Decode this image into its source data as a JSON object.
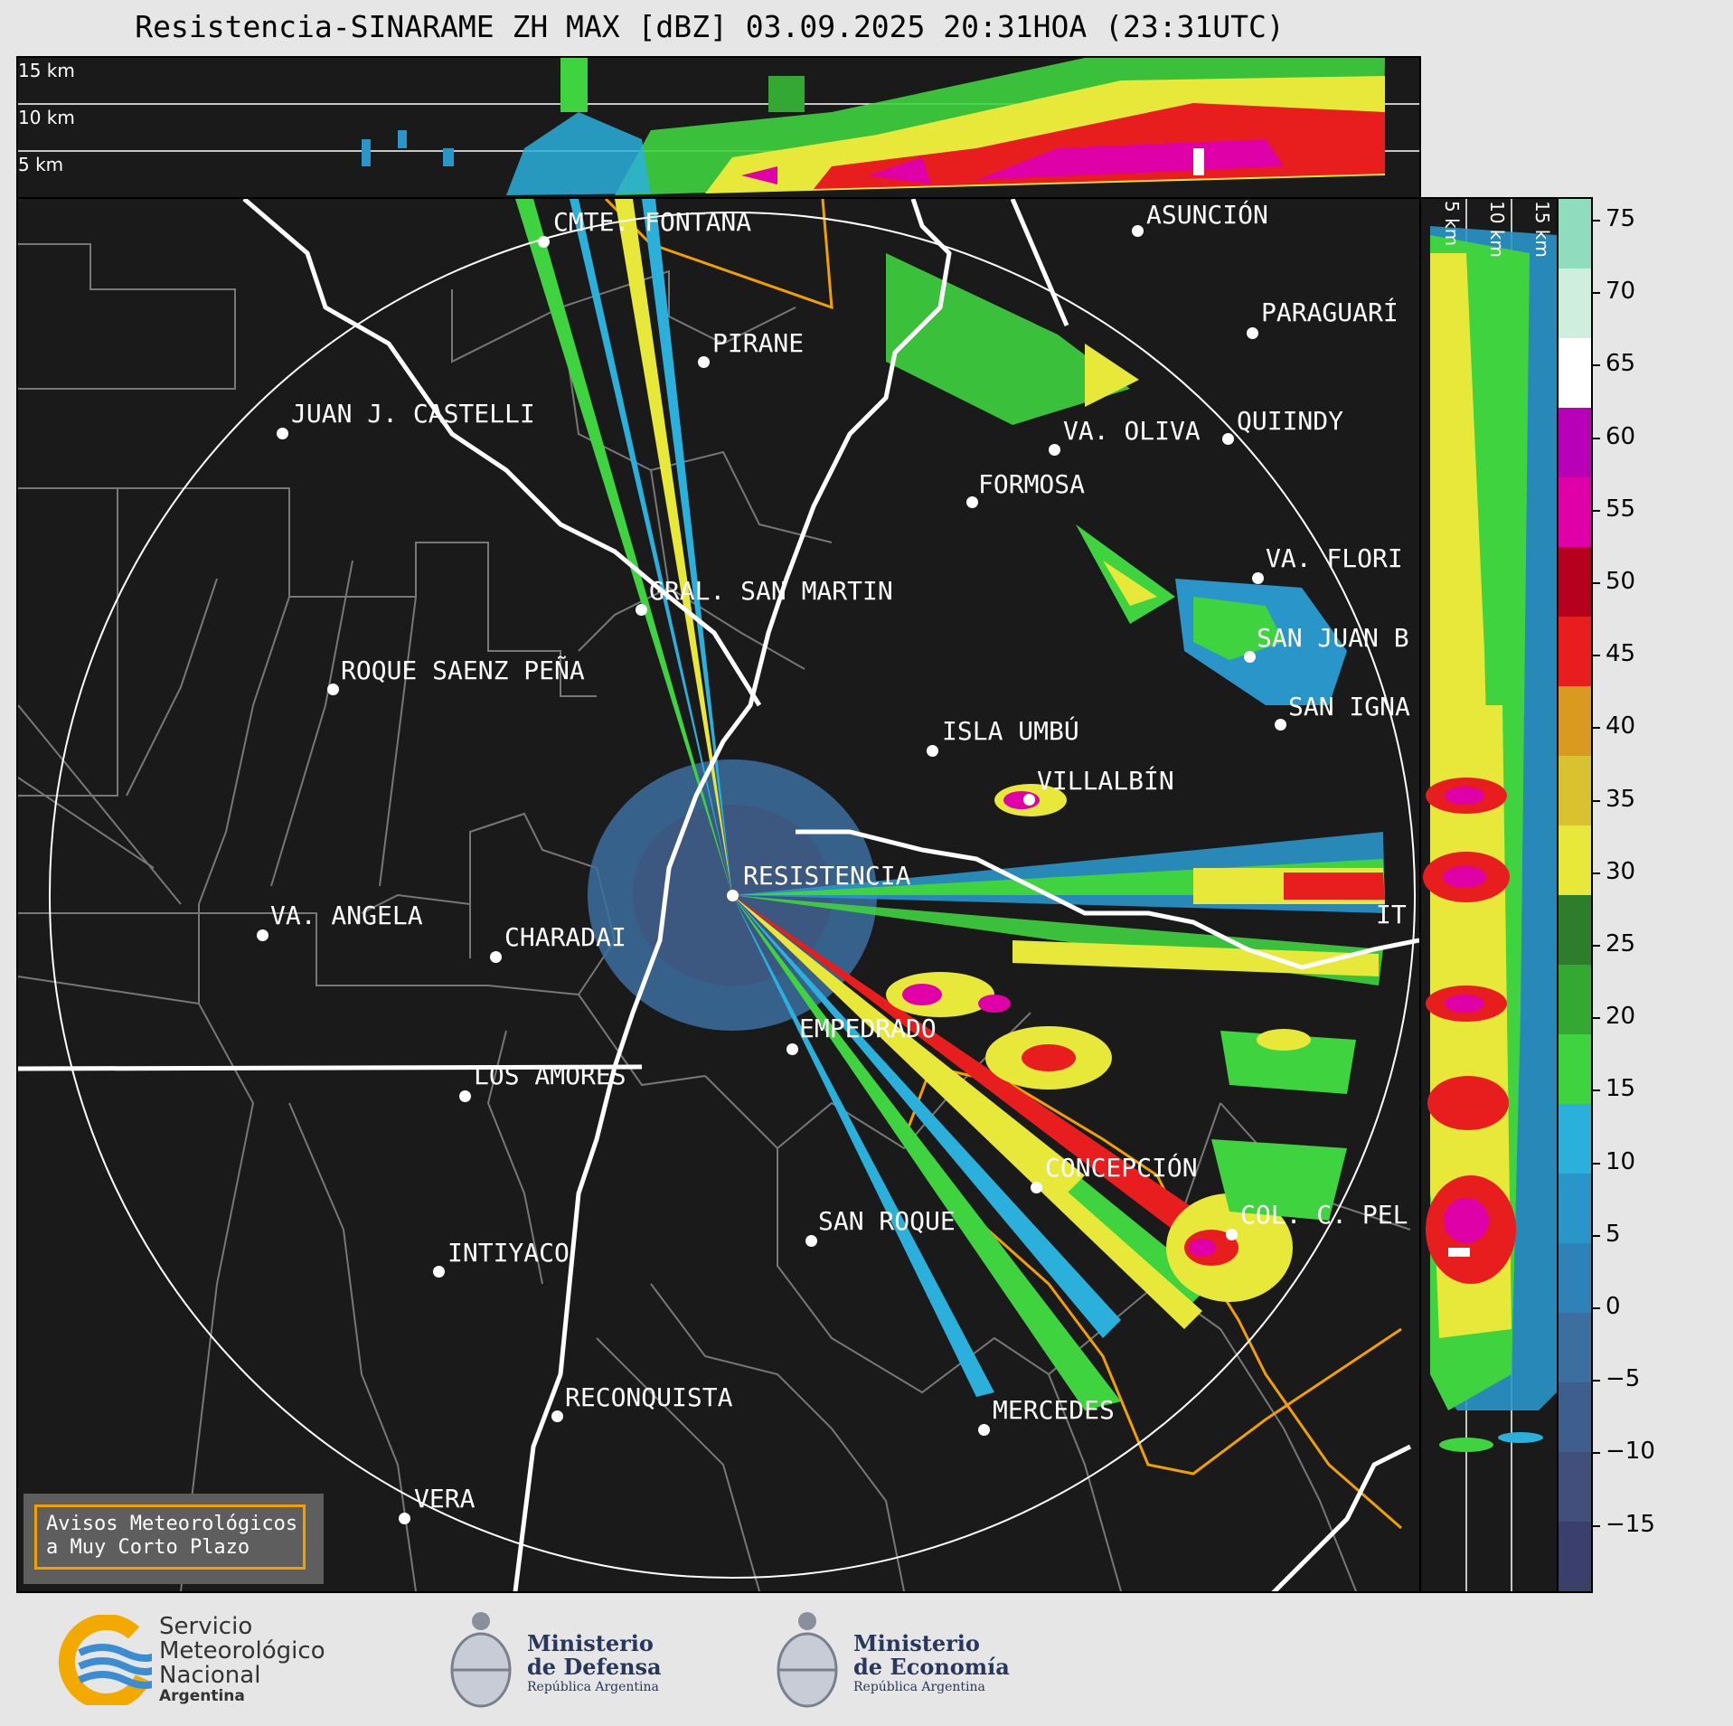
{
  "title": "Resistencia-SINARAME ZH MAX [dBZ] 03.09.2025 20:31HOA (23:31UTC)",
  "top_panel": {
    "levels": [
      "15 km",
      "10 km",
      "5 km"
    ]
  },
  "side_panel": {
    "levels": [
      "5 km",
      "10 km",
      "15 km"
    ]
  },
  "cities": [
    {
      "name": "CMTE. FONTANA"
    },
    {
      "name": "ASUNCIÓN"
    },
    {
      "name": "PARAGUARÍ"
    },
    {
      "name": "PIRANE"
    },
    {
      "name": "JUAN J. CASTELLI"
    },
    {
      "name": "VA. OLIVA"
    },
    {
      "name": "QUIINDY"
    },
    {
      "name": "FORMOSA"
    },
    {
      "name": "VA. FLORI"
    },
    {
      "name": "GRAL. SAN MARTIN"
    },
    {
      "name": "SAN JUAN B"
    },
    {
      "name": "ROQUE SAENZ PEÑA"
    },
    {
      "name": "SAN IGNA"
    },
    {
      "name": "ISLA UMBÚ"
    },
    {
      "name": "VILLALBÍN"
    },
    {
      "name": "RESISTENCIA"
    },
    {
      "name": "VA. ANGELA"
    },
    {
      "name": "CHARADAI"
    },
    {
      "name": "IT"
    },
    {
      "name": "EMPEDRADO"
    },
    {
      "name": "LOS AMORES"
    },
    {
      "name": "CONCEPCIÓN"
    },
    {
      "name": "SAN ROQUE"
    },
    {
      "name": "COL. C. PEL"
    },
    {
      "name": "INTIYACO"
    },
    {
      "name": "RECONQUISTA"
    },
    {
      "name": "MERCEDES"
    },
    {
      "name": "VERA"
    }
  ],
  "colorbar": {
    "unit": "dBZ",
    "ticks": [
      "75",
      "70",
      "65",
      "60",
      "55",
      "50",
      "45",
      "40",
      "35",
      "30",
      "25",
      "20",
      "15",
      "10",
      "5",
      "0",
      "−5",
      "−10",
      "−15"
    ],
    "colors": [
      "#3b3f6b",
      "#41507a",
      "#3e5f8d",
      "#3c6fa0",
      "#2f82b8",
      "#2a95c9",
      "#2bb0dc",
      "#3fd33f",
      "#33a833",
      "#2d7d2d",
      "#e8e83a",
      "#d8c22f",
      "#d99a1f",
      "#e81e1e",
      "#b5001e",
      "#e000a8",
      "#b800b8",
      "#ffffff",
      "#cfeedd",
      "#8fdcbf"
    ]
  },
  "warning_box": {
    "line1": "Avisos Meteorológicos",
    "line2": "a Muy Corto Plazo"
  },
  "logos": {
    "smn": [
      "Servicio",
      "Meteorológico",
      "Nacional",
      "Argentina"
    ],
    "defensa": [
      "Ministerio",
      "de Defensa",
      "República Argentina"
    ],
    "economia": [
      "Ministerio",
      "de Economía",
      "República Argentina"
    ]
  }
}
